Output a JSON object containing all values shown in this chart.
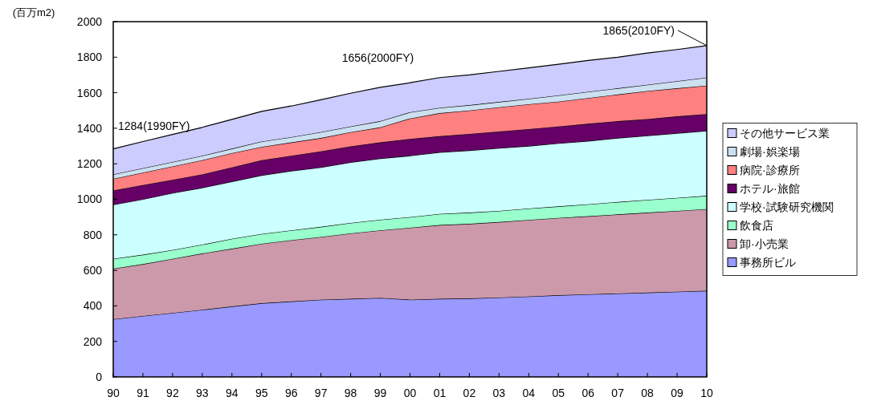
{
  "chart_data": {
    "type": "area",
    "stacked": true,
    "ylabel": "(百万m2)",
    "categories": [
      "90",
      "91",
      "92",
      "93",
      "94",
      "95",
      "96",
      "97",
      "98",
      "99",
      "00",
      "01",
      "02",
      "03",
      "04",
      "05",
      "06",
      "07",
      "08",
      "09",
      "10"
    ],
    "ylim": [
      0,
      2000
    ],
    "yticks": [
      0,
      200,
      400,
      600,
      800,
      1000,
      1200,
      1400,
      1600,
      1800,
      2000
    ],
    "grid": false,
    "legend": "right",
    "series": [
      {
        "name": "事務所ビル",
        "color": "#9999ff",
        "values": [
          325,
          343,
          360,
          378,
          397,
          415,
          425,
          435,
          440,
          445,
          435,
          440,
          442,
          447,
          453,
          460,
          465,
          470,
          475,
          480,
          485
        ]
      },
      {
        "name": "卸·小売業",
        "color": "#cc99aa",
        "values": [
          285,
          292,
          305,
          317,
          325,
          335,
          345,
          353,
          368,
          380,
          405,
          415,
          420,
          425,
          431,
          435,
          440,
          445,
          450,
          455,
          460
        ]
      },
      {
        "name": "飲食店",
        "color": "#99ffcc",
        "values": [
          55,
          53,
          50,
          50,
          56,
          55,
          55,
          57,
          59,
          60,
          60,
          63,
          63,
          63,
          64,
          65,
          67,
          70,
          72,
          73,
          75
        ]
      },
      {
        "name": "学校·試験研究機関",
        "color": "#ccffff",
        "values": [
          305,
          312,
          320,
          320,
          322,
          330,
          335,
          335,
          341,
          345,
          345,
          347,
          350,
          353,
          352,
          355,
          356,
          360,
          361,
          364,
          365
        ]
      },
      {
        "name": "ホテル·旅館",
        "color": "#660066",
        "values": [
          80,
          80,
          75,
          75,
          80,
          85,
          85,
          90,
          90,
          90,
          95,
          90,
          93,
          94,
          95,
          95,
          97,
          95,
          94,
          95,
          95
        ]
      },
      {
        "name": "病院·診療所",
        "color": "#ff8080",
        "values": [
          65,
          70,
          75,
          80,
          80,
          75,
          75,
          75,
          80,
          85,
          115,
          130,
          132,
          136,
          140,
          140,
          145,
          150,
          158,
          158,
          160
        ]
      },
      {
        "name": "劇場·娯楽場",
        "color": "#cce0f0",
        "values": [
          25,
          25,
          25,
          25,
          25,
          30,
          30,
          33,
          32,
          35,
          35,
          30,
          30,
          30,
          31,
          35,
          35,
          35,
          35,
          40,
          45
        ]
      },
      {
        "name": "その他サービス業",
        "color": "#ccccff",
        "values": [
          144,
          150,
          155,
          160,
          165,
          170,
          175,
          182,
          187,
          190,
          166,
          170,
          170,
          172,
          174,
          175,
          177,
          175,
          178,
          178,
          180
        ]
      }
    ],
    "annotations": [
      {
        "text": "1284(1990FY)",
        "x": "90",
        "y": 1284
      },
      {
        "text": "1656(2000FY)",
        "x": "00",
        "y": 1656
      },
      {
        "text": "1865(2010FY)",
        "x": "10",
        "y": 1865
      }
    ]
  }
}
